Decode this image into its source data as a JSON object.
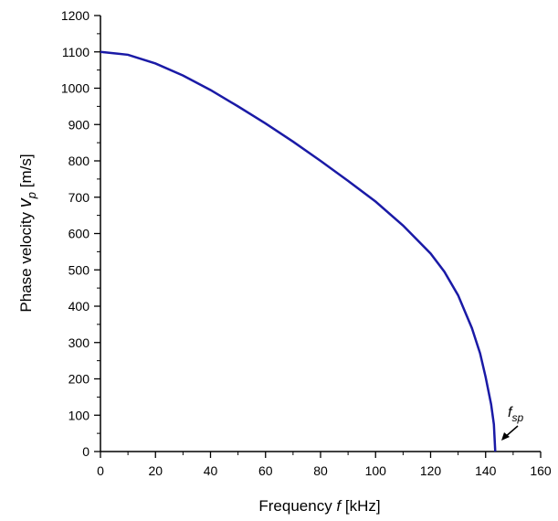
{
  "chart_data": {
    "type": "line",
    "x_label": {
      "text": "Frequency ",
      "var": "f",
      "unit": " [kHz]"
    },
    "y_label": {
      "text": "Phase velocity ",
      "var": "v",
      "sub": "p",
      "unit": "  [m/s]"
    },
    "annotation": {
      "var": "f",
      "sub": "sp"
    },
    "x": [
      0,
      10,
      20,
      30,
      40,
      50,
      60,
      70,
      80,
      90,
      100,
      110,
      120,
      125,
      130,
      135,
      138,
      140,
      142,
      143,
      143.5
    ],
    "series": [
      {
        "color": "#1a1aa6",
        "values": [
          1100,
          1092,
          1068,
          1035,
          995,
          950,
          903,
          853,
          800,
          745,
          688,
          622,
          545,
          495,
          430,
          340,
          270,
          205,
          130,
          75,
          0
        ]
      }
    ],
    "xlim": [
      0,
      160
    ],
    "ylim": [
      0,
      1200
    ],
    "xticks": [
      0,
      20,
      40,
      60,
      80,
      100,
      120,
      140,
      160
    ],
    "yticks": [
      0,
      100,
      200,
      300,
      400,
      500,
      600,
      700,
      800,
      900,
      1000,
      1100,
      1200
    ],
    "x_minor_ticks": [
      10,
      30,
      50,
      70,
      90,
      110,
      130,
      150
    ],
    "y_minor_ticks": [
      50,
      150,
      250,
      350,
      450,
      550,
      650,
      750,
      850,
      950,
      1050,
      1150
    ]
  }
}
